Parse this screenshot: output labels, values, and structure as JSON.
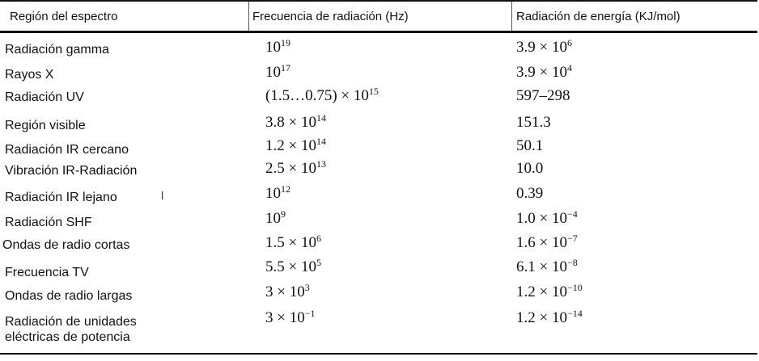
{
  "header": {
    "col1": "Región del espectro",
    "col2": "Frecuencia de radiación (Hz)",
    "col3": "Radiación de energía (KJ/mol)"
  },
  "rows": [
    {
      "region": "Radiación gamma",
      "freq_base": "10",
      "freq_exp": "19",
      "energy_base": "3.9 × 10",
      "energy_exp": "6"
    },
    {
      "region": "Rayos X",
      "freq_base": "10",
      "freq_exp": "17",
      "energy_base": "3.9 × 10",
      "energy_exp": "4"
    },
    {
      "region": "Radiación UV",
      "freq_base": "(1.5…0.75) × 10",
      "freq_exp": "15",
      "energy_base": "597–298",
      "energy_exp": ""
    },
    {
      "region": "Región visible",
      "freq_base": "3.8 × 10",
      "freq_exp": "14",
      "energy_base": "151.3",
      "energy_exp": ""
    },
    {
      "region": "Radiación IR cercano",
      "freq_base": "1.2 × 10",
      "freq_exp": "14",
      "energy_base": "50.1",
      "energy_exp": ""
    },
    {
      "region": "Vibración IR-Radiación",
      "freq_base": "2.5 × 10",
      "freq_exp": "13",
      "energy_base": "10.0",
      "energy_exp": ""
    },
    {
      "region": "Radiación IR lejano",
      "freq_base": "10",
      "freq_exp": "12",
      "energy_base": "0.39",
      "energy_exp": ""
    },
    {
      "region": "Radiación SHF",
      "freq_base": "10",
      "freq_exp": "9",
      "energy_base": "1.0 × 10",
      "energy_exp": "−4"
    },
    {
      "region": "Ondas de radio cortas",
      "freq_base": "1.5 × 10",
      "freq_exp": "6",
      "energy_base": "1.6 × 10",
      "energy_exp": "−7"
    },
    {
      "region": "Frecuencia TV",
      "freq_base": "5.5 × 10",
      "freq_exp": "5",
      "energy_base": "6.1 × 10",
      "energy_exp": "−8"
    },
    {
      "region": "Ondas de radio largas",
      "freq_base": "3 × 10",
      "freq_exp": "3",
      "energy_base": "1.2 × 10",
      "energy_exp": "−10"
    },
    {
      "region": "Radiación de unidades",
      "freq_base": "3 × 10",
      "freq_exp": "−1",
      "energy_base": "1.2 × 10",
      "energy_exp": "−14"
    }
  ],
  "last_row_region_line2": "eléctricas de potencia",
  "stray_mark": "l"
}
